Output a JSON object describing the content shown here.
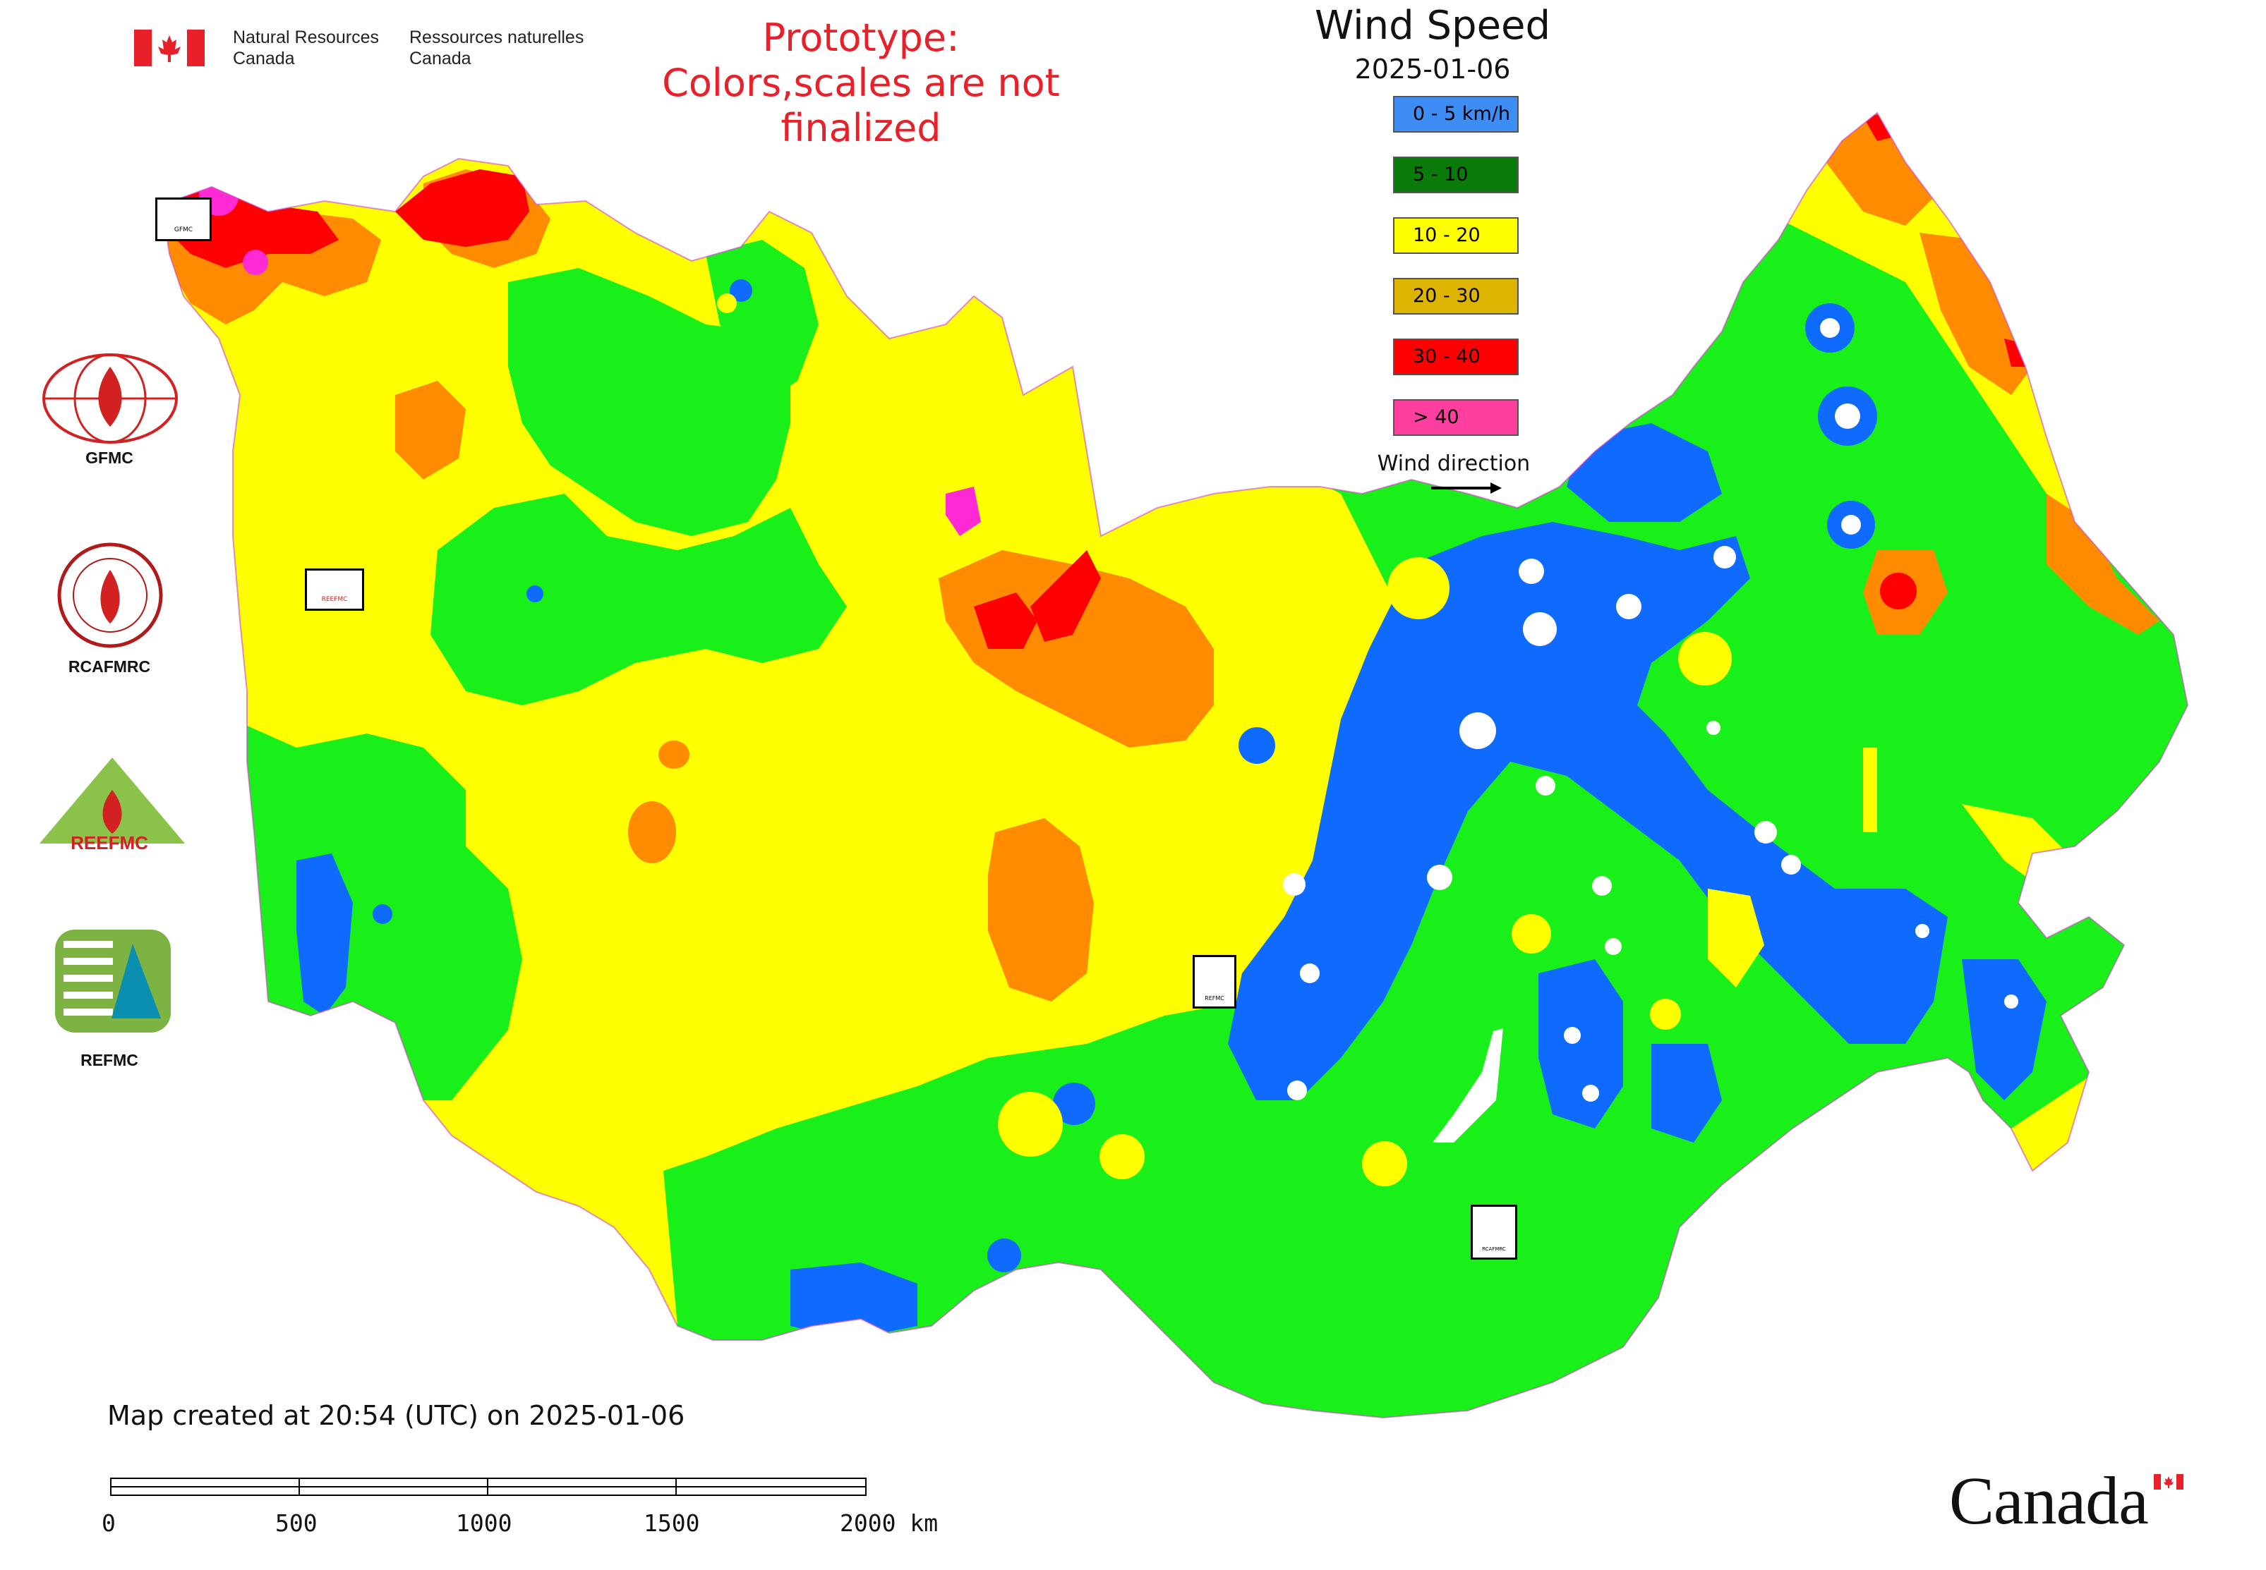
{
  "header": {
    "nrcan_en": "Natural Resources\nCanada",
    "nrcan_fr": "Ressources naturelles\nCanada",
    "prototype_line1": "Prototype:",
    "prototype_line2": "Colors,scales are not finalized"
  },
  "legend": {
    "title": "Wind Speed",
    "date": "2025-01-06",
    "items": [
      {
        "label": "0 - 5 km/h",
        "color": "#3d8df5"
      },
      {
        "label": "5 - 10",
        "color": "#0a7a0a"
      },
      {
        "label": "10 - 20",
        "color": "#ffff00"
      },
      {
        "label": "20 - 30",
        "color": "#ddb500"
      },
      {
        "label": "30 - 40",
        "color": "#ff0000"
      },
      {
        "label": "> 40",
        "color": "#ff3fa0"
      }
    ],
    "wind_direction_label": "Wind direction"
  },
  "map_colors": {
    "calm": "#0f6bff",
    "light": "#19f019",
    "moderate": "#ffff00",
    "fresh": "#ff8c00",
    "strong": "#ff0000",
    "gale": "#ff2ad4"
  },
  "logos": [
    {
      "name": "GFMC"
    },
    {
      "name": "RCAFMRC"
    },
    {
      "name": "REEFMC"
    },
    {
      "name": "REFMC"
    }
  ],
  "map_stamps": {
    "gfmc": "GFMC",
    "reefmc": "REEFMC",
    "refmc": "REFMC",
    "rcafmrc": "RCAFMRC"
  },
  "footer": {
    "created": "Map created at 20:54 (UTC) on 2025-01-06",
    "scale_ticks": [
      "0",
      "500",
      "1000",
      "1500",
      "2000 km"
    ],
    "canada_wordmark": "Canada"
  }
}
